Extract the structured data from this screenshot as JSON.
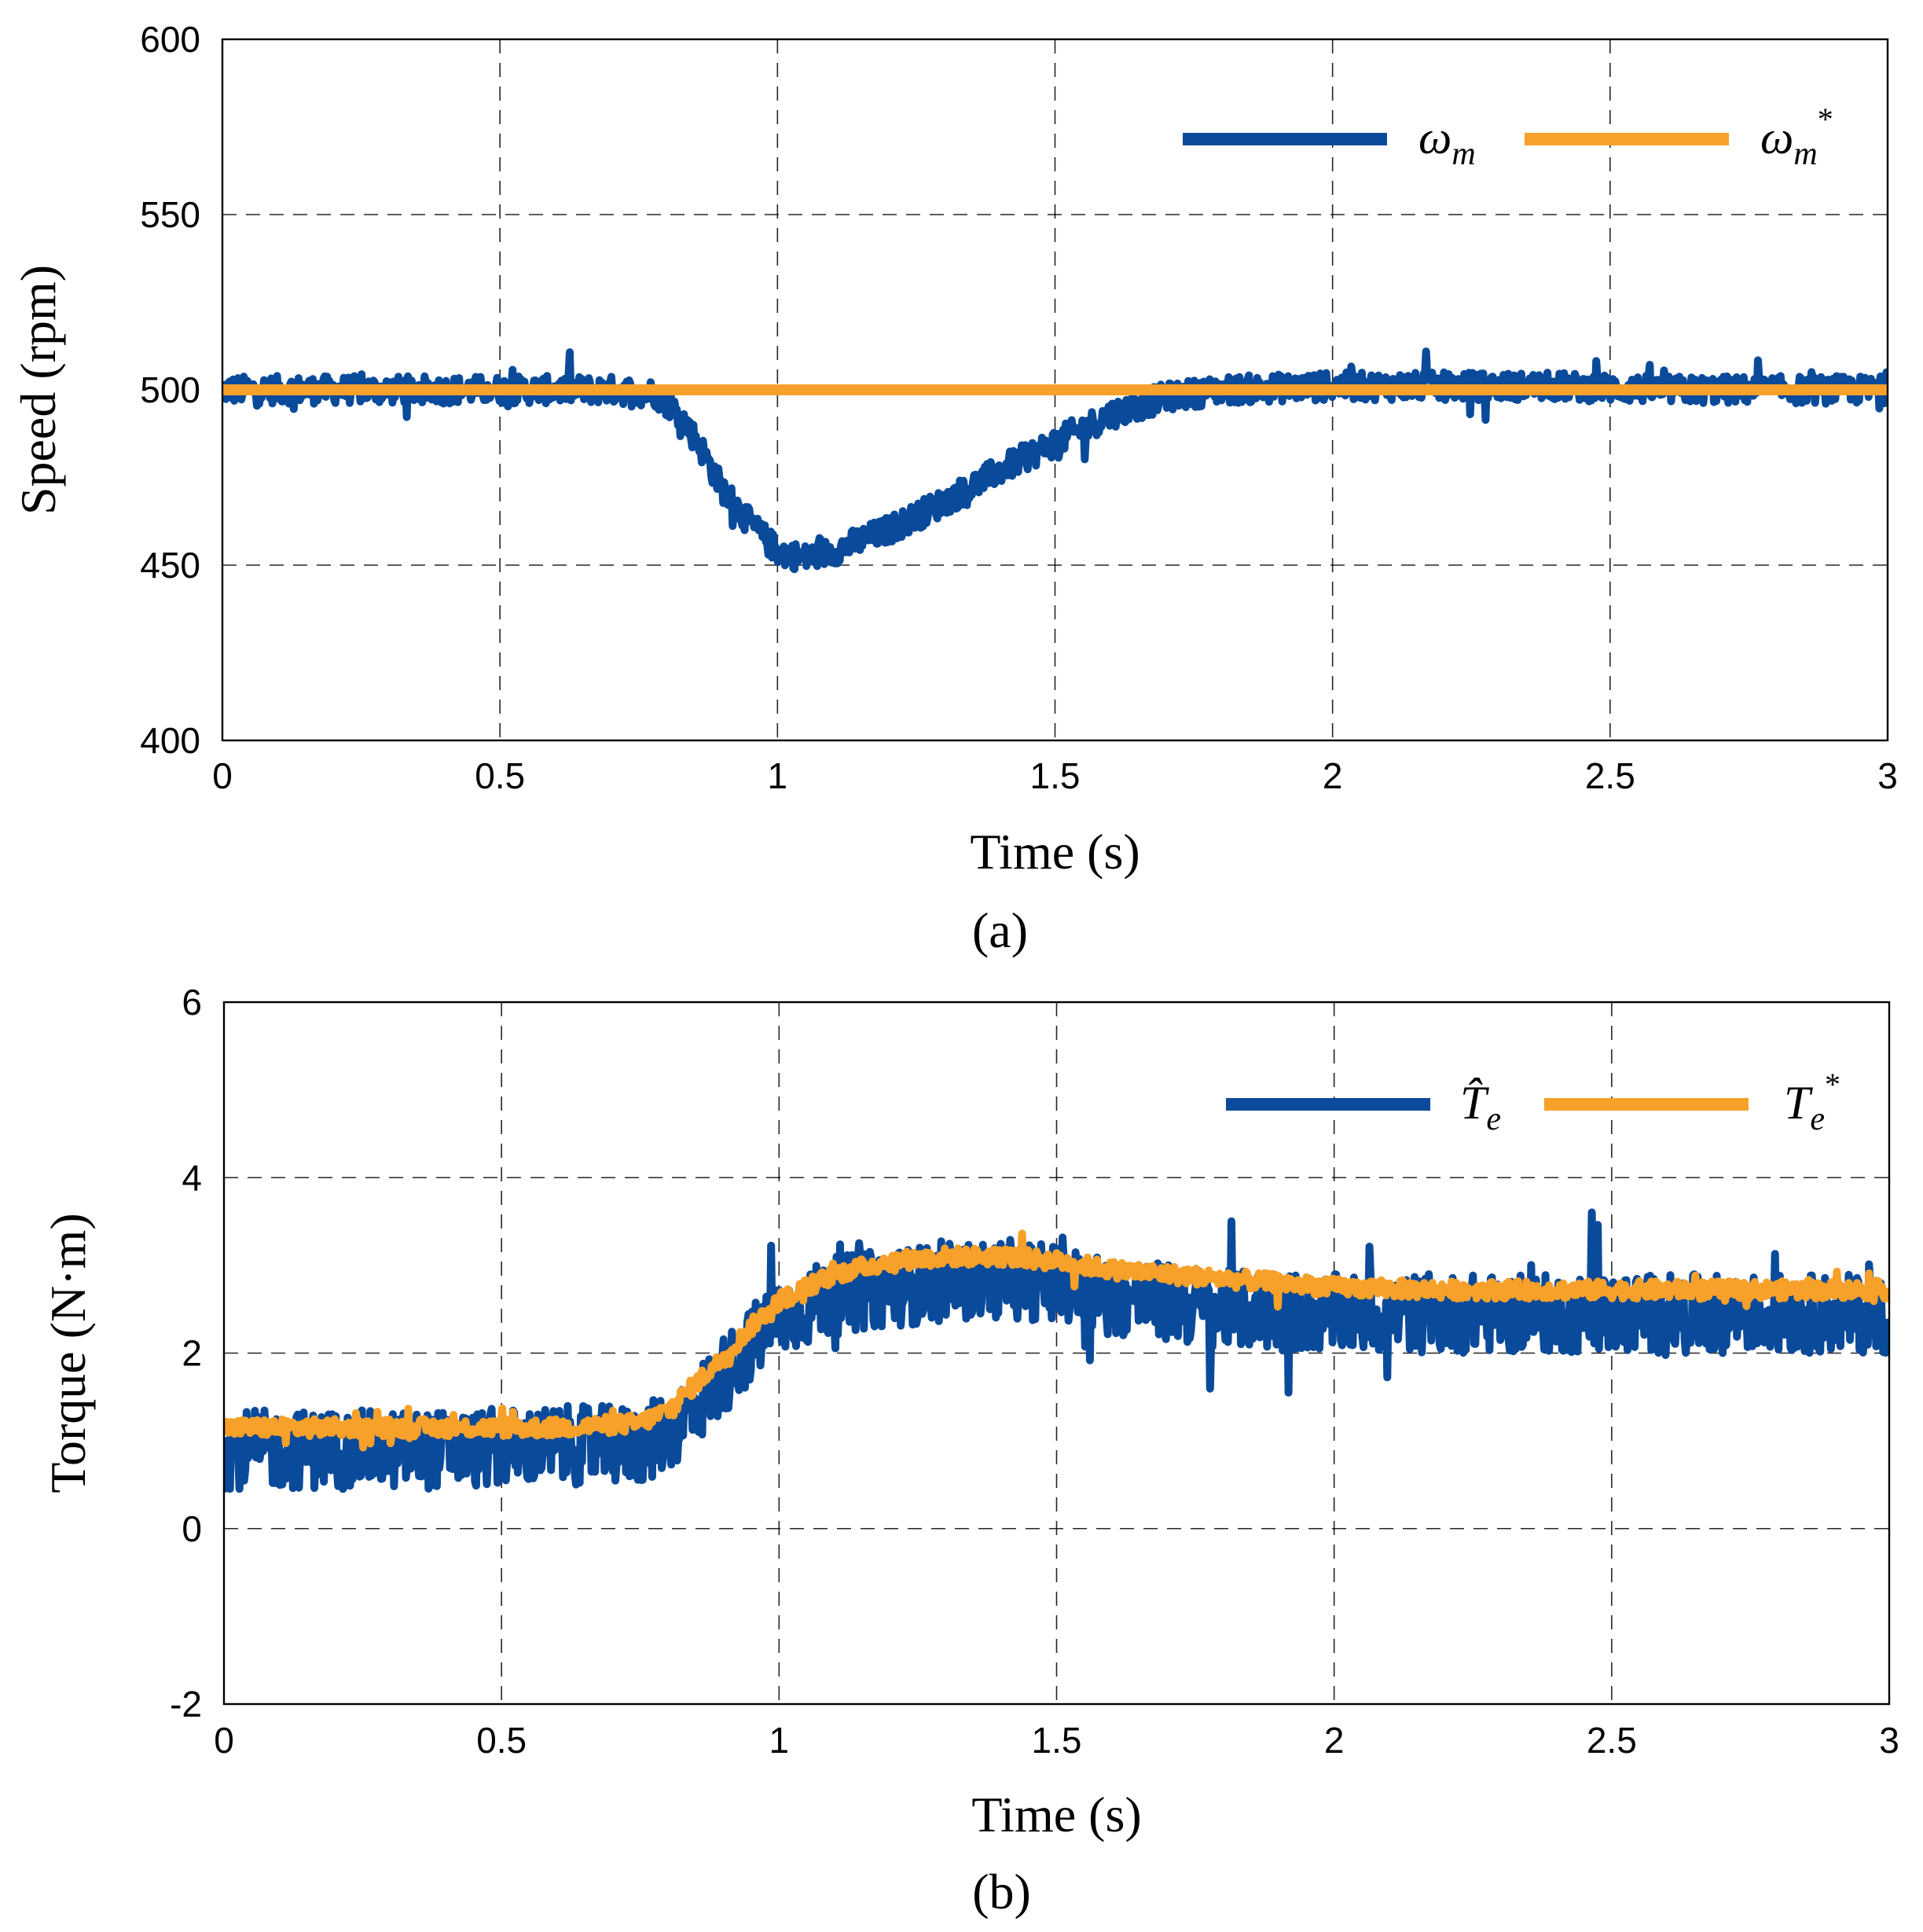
{
  "colors": {
    "measured": "#0a4a9a",
    "reference": "#f7a12a"
  },
  "chart_data": [
    {
      "type": "line",
      "caption": "(a)",
      "xlabel": "Time (s)",
      "ylabel": "Speed (rpm)",
      "xlim": [
        0,
        3
      ],
      "ylim": [
        400,
        600
      ],
      "xticks": [
        "0",
        "0.5",
        "1",
        "1.5",
        "2",
        "2.5",
        "3"
      ],
      "yticks": [
        "400",
        "450",
        "500",
        "550",
        "600"
      ],
      "grid": true,
      "legend_position": "top-right",
      "series": [
        {
          "name": "ωm",
          "legend": {
            "base": "ω",
            "sub": "m",
            "sup": ""
          },
          "noise": 4,
          "x": [
            0,
            0.1,
            0.2,
            0.3,
            0.4,
            0.5,
            0.6,
            0.7,
            0.78,
            0.82,
            0.86,
            0.9,
            0.95,
            1.0,
            1.05,
            1.1,
            1.15,
            1.2,
            1.3,
            1.4,
            1.5,
            1.6,
            1.7,
            1.8,
            2.0,
            2.2,
            2.4,
            2.6,
            2.8,
            3.0
          ],
          "y": [
            500,
            500,
            500,
            500,
            500,
            500,
            500,
            500,
            499,
            494,
            484,
            472,
            462,
            454,
            452,
            454,
            457,
            460,
            468,
            477,
            485,
            493,
            498,
            500,
            501,
            501,
            501,
            500,
            500,
            500
          ]
        },
        {
          "name": "ωm*",
          "legend": {
            "base": "ω",
            "sub": "m",
            "sup": "*"
          },
          "noise": 0,
          "x": [
            0,
            3
          ],
          "y": [
            500,
            500
          ]
        }
      ]
    },
    {
      "type": "line",
      "caption": "(b)",
      "xlabel": "Time (s)",
      "ylabel": "Torque (N·m)",
      "xlim": [
        0,
        3
      ],
      "ylim": [
        -2,
        6
      ],
      "xticks": [
        "0",
        "0.5",
        "1",
        "1.5",
        "2",
        "2.5",
        "3"
      ],
      "yticks": [
        "-2",
        "0",
        "2",
        "4",
        "6"
      ],
      "grid": true,
      "legend_position": "top-right",
      "series": [
        {
          "name": "T̂e",
          "legend": {
            "base": "T̂",
            "sub": "e",
            "sup": ""
          },
          "noise": 0.45,
          "x": [
            0,
            0.2,
            0.4,
            0.6,
            0.75,
            0.8,
            0.85,
            0.9,
            0.95,
            1.0,
            1.1,
            1.2,
            1.3,
            1.4,
            1.5,
            1.6,
            1.8,
            2.0,
            2.2,
            2.5,
            2.8,
            3.0
          ],
          "y": [
            0.9,
            0.9,
            0.9,
            0.95,
            0.95,
            1.1,
            1.4,
            1.75,
            2.1,
            2.4,
            2.65,
            2.75,
            2.8,
            2.85,
            2.8,
            2.65,
            2.5,
            2.45,
            2.45,
            2.45,
            2.45,
            2.45
          ]
        },
        {
          "name": "Te*",
          "legend": {
            "base": "T",
            "sub": "e",
            "sup": "*"
          },
          "noise": 0.1,
          "x": [
            0,
            0.2,
            0.4,
            0.6,
            0.75,
            0.8,
            0.85,
            0.9,
            0.95,
            1.0,
            1.1,
            1.2,
            1.3,
            1.4,
            1.5,
            1.6,
            1.8,
            2.0,
            2.2,
            2.5,
            2.8,
            3.0
          ],
          "y": [
            1.15,
            1.15,
            1.15,
            1.15,
            1.2,
            1.35,
            1.65,
            1.95,
            2.3,
            2.6,
            2.9,
            3.05,
            3.1,
            3.1,
            3.05,
            2.95,
            2.85,
            2.75,
            2.72,
            2.72,
            2.72,
            2.72
          ]
        }
      ]
    }
  ]
}
